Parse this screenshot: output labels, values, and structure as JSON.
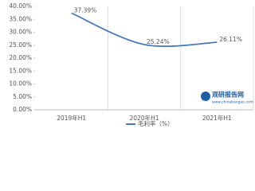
{
  "chart_data": {
    "type": "line",
    "categories": [
      "2019年H1",
      "2020年H1",
      "2021年H1"
    ],
    "series": [
      {
        "name": "毛利率（%）",
        "color": "#4a7ab5",
        "values": [
          37.39,
          25.24,
          26.11
        ],
        "value_labels": [
          "37.39%",
          "25.24%",
          "26.11%"
        ]
      }
    ],
    "ylim": [
      0,
      40
    ],
    "yticks": [
      {
        "value": 0,
        "label": "0.00%"
      },
      {
        "value": 5,
        "label": "5.00%"
      },
      {
        "value": 10,
        "label": "10.00%"
      },
      {
        "value": 15,
        "label": "15.00%"
      },
      {
        "value": 20,
        "label": "20.00%"
      },
      {
        "value": 25,
        "label": "25.00%"
      },
      {
        "value": 30,
        "label": "30.00%"
      },
      {
        "value": 35,
        "label": "35.00%"
      },
      {
        "value": 40,
        "label": "40.00%"
      }
    ],
    "watermark": {
      "title": "观研报告网",
      "url": "www.chinabaogao.com"
    }
  }
}
